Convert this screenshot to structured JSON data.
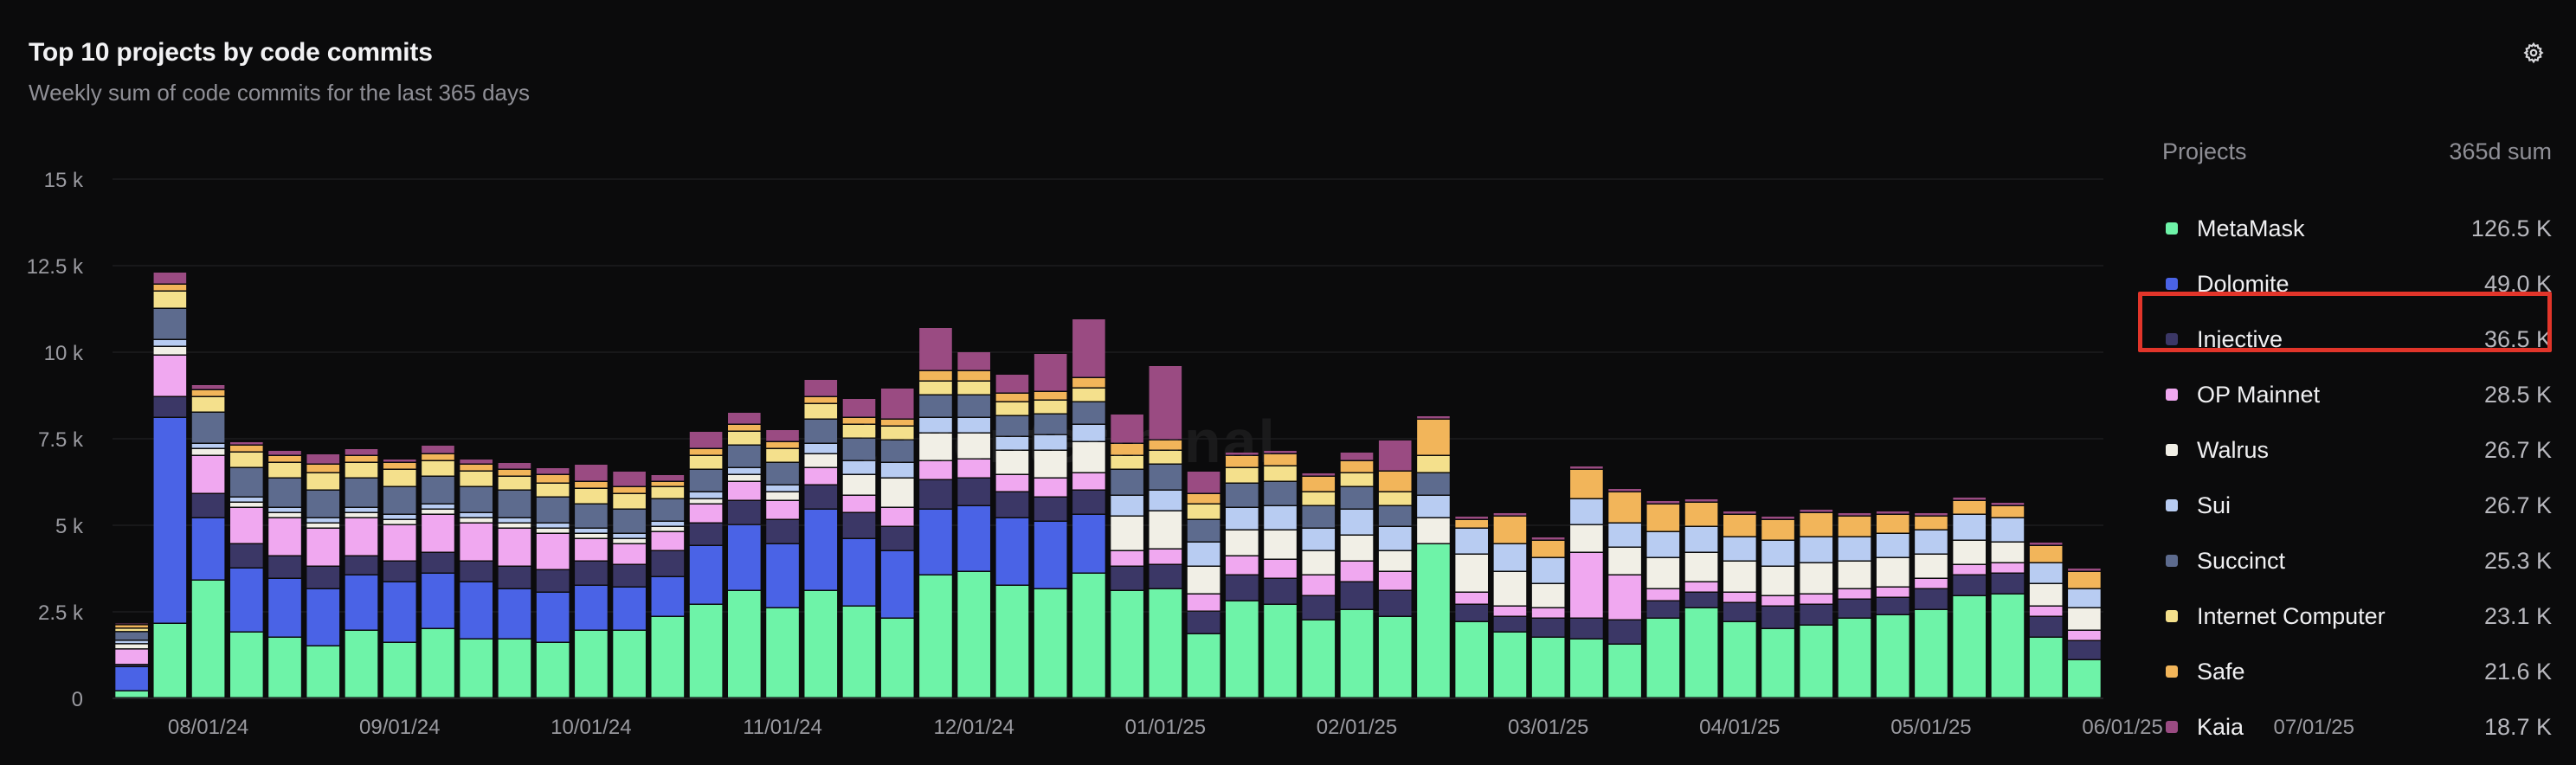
{
  "header": {
    "title": "Top 10 projects by code commits",
    "subtitle": "Weekly sum of code commits for the last 365 days"
  },
  "watermark": "tokenterminal",
  "legend": {
    "header_left": "Projects",
    "header_right": "365d sum",
    "items": [
      {
        "name": "MetaMask",
        "value": "126.5 K",
        "color": "#6ef3a8"
      },
      {
        "name": "Dolomite",
        "value": "49.0 K",
        "color": "#4a63e6"
      },
      {
        "name": "Injective",
        "value": "36.5 K",
        "color": "#3b3766"
      },
      {
        "name": "OP Mainnet",
        "value": "28.5 K",
        "color": "#f0a8f0"
      },
      {
        "name": "Walrus",
        "value": "26.7 K",
        "color": "#f1efe6"
      },
      {
        "name": "Sui",
        "value": "26.7 K",
        "color": "#b8ccf2"
      },
      {
        "name": "Succinct",
        "value": "25.3 K",
        "color": "#5d6b8e"
      },
      {
        "name": "Internet Computer",
        "value": "23.1 K",
        "color": "#f4e08c"
      },
      {
        "name": "Safe",
        "value": "21.6 K",
        "color": "#f2b55a"
      },
      {
        "name": "Kaia",
        "value": "18.7 K",
        "color": "#9a4b82"
      }
    ]
  },
  "chart_data": {
    "type": "bar",
    "stacked": true,
    "title": "Top 10 projects by code commits",
    "subtitle": "Weekly sum of code commits for the last 365 days",
    "ylim": [
      0,
      15000
    ],
    "y_ticks": [
      0,
      2500,
      5000,
      7500,
      10000,
      12500,
      15000
    ],
    "y_tick_labels": [
      "0",
      "2.5 k",
      "5 k",
      "7.5 k",
      "10 k",
      "12.5 k",
      "15 k"
    ],
    "x_tick_labels": [
      "08/01/24",
      "09/01/24",
      "10/01/24",
      "11/01/24",
      "12/01/24",
      "01/01/25",
      "02/01/25",
      "03/01/25",
      "04/01/25",
      "05/01/25",
      "06/01/25",
      "07/01/25"
    ],
    "x_tick_bar_index": [
      2,
      7,
      12,
      17,
      22,
      27,
      32,
      37,
      42,
      47,
      52,
      57
    ],
    "grid": true,
    "legend_position": "right",
    "series": [
      {
        "name": "MetaMask",
        "color": "#6ef3a8",
        "values": [
          200,
          2150,
          3400,
          1900,
          1750,
          1500,
          1950,
          1600,
          2000,
          1700,
          1700,
          1600,
          1950,
          1950,
          2350,
          2700,
          3100,
          2600,
          3100,
          2650,
          2300,
          3550,
          3650,
          3250,
          3150,
          3600,
          3100,
          3150,
          1850,
          2800,
          2700,
          2250,
          2550,
          2350,
          4450,
          2200,
          1900,
          1750,
          1700,
          1550,
          2300,
          2600,
          2200,
          2000,
          2100,
          2300,
          2400,
          2550,
          2950,
          3000,
          1750,
          1100
        ]
      },
      {
        "name": "Dolomite",
        "color": "#4a63e6",
        "values": [
          700,
          5950,
          1800,
          1850,
          1700,
          1650,
          1600,
          1750,
          1600,
          1650,
          1450,
          1450,
          1300,
          1250,
          1150,
          1700,
          1900,
          1850,
          2350,
          1950,
          1950,
          1900,
          1900,
          1950,
          1950,
          1700,
          0,
          0,
          0,
          0,
          0,
          0,
          0,
          0,
          0,
          0,
          0,
          0,
          0,
          0,
          0,
          0,
          0,
          0,
          0,
          0,
          0,
          0,
          0,
          0,
          0,
          0
        ]
      },
      {
        "name": "Injective",
        "color": "#3b3766",
        "values": [
          60,
          600,
          700,
          700,
          650,
          650,
          550,
          600,
          600,
          600,
          650,
          650,
          700,
          650,
          750,
          650,
          700,
          700,
          700,
          750,
          700,
          850,
          800,
          750,
          700,
          700,
          700,
          700,
          650,
          750,
          750,
          700,
          800,
          750,
          0,
          500,
          450,
          550,
          600,
          700,
          500,
          450,
          550,
          650,
          600,
          550,
          500,
          600,
          600,
          600,
          600,
          550
        ]
      },
      {
        "name": "OP Mainnet",
        "color": "#f0a8f0",
        "values": [
          450,
          1200,
          1100,
          1050,
          1100,
          1100,
          1100,
          1050,
          1100,
          1100,
          1100,
          1050,
          650,
          600,
          550,
          550,
          550,
          550,
          500,
          500,
          550,
          550,
          550,
          500,
          550,
          500,
          450,
          450,
          500,
          550,
          550,
          600,
          600,
          550,
          0,
          350,
          300,
          300,
          1900,
          1300,
          350,
          300,
          300,
          300,
          300,
          300,
          300,
          300,
          300,
          300,
          300,
          300
        ]
      },
      {
        "name": "Walrus",
        "color": "#f1efe6",
        "values": [
          150,
          250,
          200,
          150,
          150,
          150,
          150,
          150,
          150,
          150,
          150,
          150,
          150,
          150,
          150,
          150,
          200,
          250,
          400,
          600,
          850,
          800,
          750,
          700,
          800,
          900,
          1000,
          1100,
          800,
          750,
          850,
          700,
          750,
          600,
          750,
          1100,
          1000,
          700,
          800,
          800,
          900,
          850,
          900,
          850,
          900,
          800,
          850,
          700,
          700,
          600,
          650,
          650
        ]
      },
      {
        "name": "Sui",
        "color": "#b8ccf2",
        "values": [
          100,
          200,
          150,
          150,
          150,
          150,
          150,
          150,
          150,
          150,
          150,
          150,
          150,
          150,
          150,
          200,
          200,
          200,
          300,
          400,
          450,
          450,
          450,
          400,
          450,
          500,
          600,
          600,
          700,
          650,
          700,
          650,
          750,
          700,
          650,
          750,
          800,
          750,
          750,
          700,
          750,
          750,
          700,
          750,
          750,
          700,
          700,
          700,
          750,
          700,
          600,
          550
        ]
      },
      {
        "name": "Succinct",
        "color": "#5d6b8e",
        "values": [
          250,
          900,
          900,
          850,
          850,
          800,
          850,
          800,
          800,
          750,
          800,
          750,
          700,
          700,
          650,
          650,
          650,
          650,
          700,
          650,
          650,
          650,
          650,
          600,
          600,
          650,
          750,
          750,
          650,
          700,
          700,
          650,
          650,
          600,
          650,
          0,
          0,
          0,
          0,
          0,
          0,
          0,
          0,
          0,
          0,
          0,
          0,
          0,
          0,
          0,
          0,
          0
        ]
      },
      {
        "name": "Internet Computer",
        "color": "#f4e08c",
        "values": [
          100,
          500,
          450,
          450,
          450,
          500,
          450,
          500,
          450,
          450,
          400,
          400,
          450,
          450,
          350,
          400,
          400,
          400,
          450,
          400,
          400,
          400,
          400,
          400,
          400,
          400,
          400,
          400,
          450,
          450,
          450,
          400,
          400,
          400,
          500,
          0,
          0,
          0,
          0,
          0,
          0,
          0,
          0,
          0,
          0,
          0,
          0,
          0,
          0,
          0,
          0,
          0
        ]
      },
      {
        "name": "Safe",
        "color": "#f2b55a",
        "values": [
          100,
          200,
          200,
          200,
          200,
          250,
          200,
          200,
          200,
          200,
          200,
          250,
          200,
          200,
          150,
          200,
          200,
          200,
          200,
          200,
          200,
          300,
          300,
          250,
          250,
          300,
          350,
          300,
          300,
          350,
          350,
          450,
          350,
          600,
          1050,
          250,
          800,
          500,
          850,
          900,
          800,
          700,
          650,
          600,
          700,
          600,
          550,
          400,
          400,
          350,
          500,
          500
        ]
      },
      {
        "name": "Kaia",
        "color": "#9a4b82",
        "values": [
          50,
          350,
          150,
          100,
          150,
          300,
          200,
          100,
          250,
          150,
          200,
          200,
          500,
          450,
          200,
          500,
          350,
          350,
          500,
          550,
          900,
          1250,
          550,
          550,
          1100,
          1700,
          850,
          2150,
          650,
          100,
          100,
          100,
          250,
          900,
          100,
          100,
          100,
          100,
          100,
          100,
          100,
          100,
          100,
          100,
          100,
          100,
          100,
          100,
          100,
          100,
          100,
          100
        ]
      }
    ]
  }
}
